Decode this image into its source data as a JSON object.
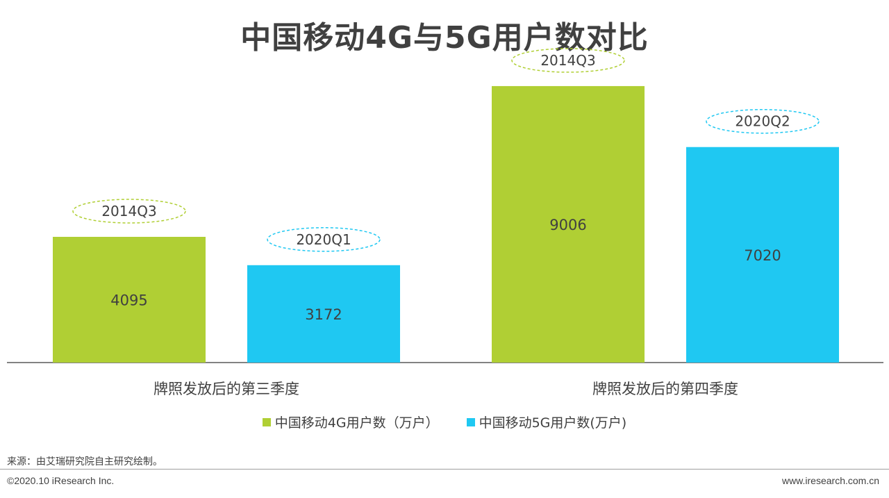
{
  "title": "中国移动4G与5G用户数对比",
  "chart_data": {
    "type": "bar",
    "categories": [
      "牌照发放后的第三季度",
      "牌照发放后的第四季度"
    ],
    "series": [
      {
        "name": "中国移动4G用户数（万户）",
        "color": "#b0cf34",
        "values": [
          4095,
          9006
        ],
        "quarter_labels": [
          "2014Q3",
          "2014Q3"
        ]
      },
      {
        "name": "中国移动5G用户数(万户)",
        "color": "#1fc8f2",
        "values": [
          3172,
          7020
        ],
        "quarter_labels": [
          "2020Q1",
          "2020Q2"
        ]
      }
    ],
    "ylim": [
      0,
      10000
    ],
    "grid": false,
    "legend_position": "bottom"
  },
  "footer": {
    "source": "来源：由艾瑞研究院自主研究绘制。",
    "copyright": "©2020.10 iResearch Inc.",
    "website": "www.iresearch.com.cn"
  }
}
